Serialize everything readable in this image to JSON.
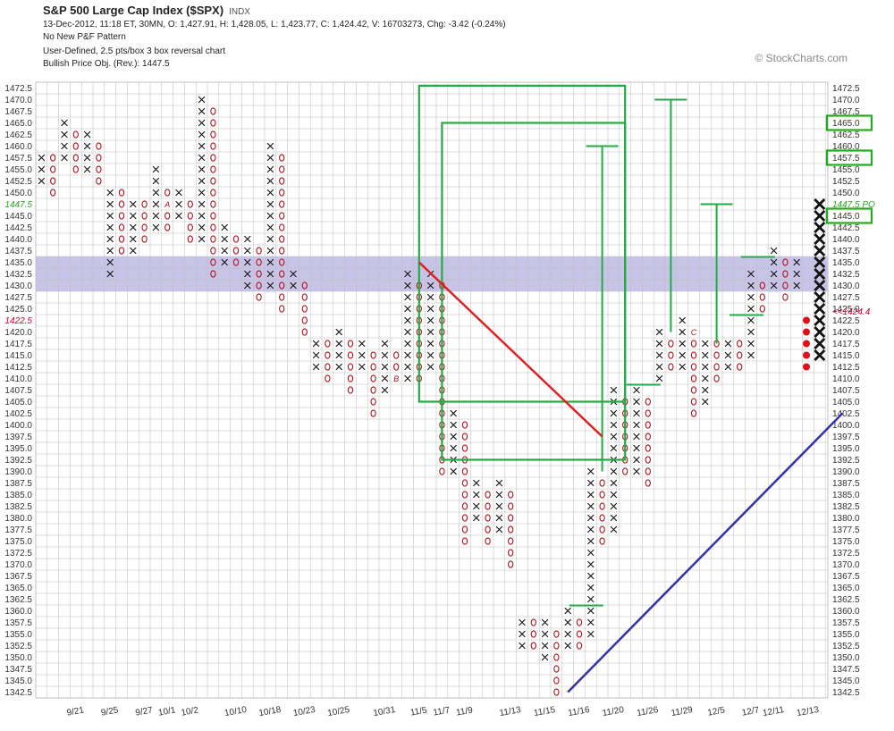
{
  "header": {
    "title": "S&P 500 Large Cap Index ($SPX)",
    "symbol_type": "INDX",
    "line1": "13-Dec-2012, 11:18 ET, 30MN, O: 1,427.91, H: 1,428.05, L: 1,423.77, C: 1,424.42, V: 16703273, Chg: -3.42 (-0.24%)",
    "line2": "No New P&F Pattern",
    "line3": "User-Defined, 2.5 pts/box 3 box reversal chart",
    "line4": "Bullish Price Obj. (Rev.): 1447.5",
    "watermark": "© StockCharts.com"
  },
  "chart_data": {
    "type": "point-and-figure",
    "box_size": 2.5,
    "reversal": 3,
    "y_range": [
      1342.5,
      1472.5
    ],
    "y_ticks": [
      "1472.5",
      "1470.0",
      "1467.5",
      "1465.0",
      "1462.5",
      "1460.0",
      "1457.5",
      "1455.0",
      "1452.5",
      "1450.0",
      "1447.5",
      "1445.0",
      "1442.5",
      "1440.0",
      "1437.5",
      "1435.0",
      "1432.5",
      "1430.0",
      "1427.5",
      "1425.0",
      "1422.5",
      "1420.0",
      "1417.5",
      "1415.0",
      "1412.5",
      "1410.0",
      "1407.5",
      "1405.0",
      "1402.5",
      "1400.0",
      "1397.5",
      "1395.0",
      "1392.5",
      "1390.0",
      "1387.5",
      "1385.0",
      "1382.5",
      "1380.0",
      "1377.5",
      "1375.0",
      "1372.5",
      "1370.0",
      "1367.5",
      "1365.0",
      "1362.5",
      "1360.0",
      "1357.5",
      "1355.0",
      "1352.5",
      "1350.0",
      "1347.5",
      "1345.0",
      "1342.5"
    ],
    "left_markers": [
      {
        "value": 1447.5,
        "label": "1447.5",
        "color": "#22aa22"
      },
      {
        "value": 1422.5,
        "label": "1422.5",
        "color": "#cc0033"
      }
    ],
    "right_markers": [
      {
        "value": 1465.0,
        "label": "1465.0",
        "boxed": true
      },
      {
        "value": 1457.5,
        "label": "1457.5",
        "boxed": true
      },
      {
        "value": 1447.5,
        "label": "1447.5 PO",
        "color": "#22aa22"
      },
      {
        "value": 1445.0,
        "label": "1445.0",
        "boxed": true
      },
      {
        "value": 1424.4,
        "label": "<<1424.4",
        "color": "#cc0033"
      }
    ],
    "x_labels": [
      {
        "col": 3,
        "label": "9/21"
      },
      {
        "col": 6,
        "label": "9/25"
      },
      {
        "col": 9,
        "label": "9/27"
      },
      {
        "col": 11,
        "label": "10/1"
      },
      {
        "col": 13,
        "label": "10/2"
      },
      {
        "col": 17,
        "label": "10/10"
      },
      {
        "col": 20,
        "label": "10/18"
      },
      {
        "col": 23,
        "label": "10/23"
      },
      {
        "col": 26,
        "label": "10/25"
      },
      {
        "col": 30,
        "label": "10/31"
      },
      {
        "col": 33,
        "label": "11/5"
      },
      {
        "col": 35,
        "label": "11/7"
      },
      {
        "col": 37,
        "label": "11/9"
      },
      {
        "col": 41,
        "label": "11/13"
      },
      {
        "col": 44,
        "label": "11/15"
      },
      {
        "col": 47,
        "label": "11/16"
      },
      {
        "col": 50,
        "label": "11/20"
      },
      {
        "col": 53,
        "label": "11/26"
      },
      {
        "col": 56,
        "label": "11/29"
      },
      {
        "col": 59,
        "label": "12/5"
      },
      {
        "col": 62,
        "label": "12/7"
      },
      {
        "col": 64,
        "label": "12/11"
      },
      {
        "col": 67,
        "label": "12/13"
      }
    ],
    "columns": [
      {
        "t": "X",
        "lo": 1452.5,
        "hi": 1457.5
      },
      {
        "t": "O",
        "lo": 1450.0,
        "hi": 1457.5
      },
      {
        "t": "X",
        "lo": 1457.5,
        "hi": 1465.0
      },
      {
        "t": "O",
        "lo": 1455.0,
        "hi": 1462.5
      },
      {
        "t": "X",
        "lo": 1455.0,
        "hi": 1462.5
      },
      {
        "t": "O",
        "lo": 1452.5,
        "hi": 1460.0
      },
      {
        "t": "X",
        "lo": 1432.5,
        "hi": 1450.0
      },
      {
        "t": "O",
        "lo": 1437.5,
        "hi": 1450.0
      },
      {
        "t": "X",
        "lo": 1437.5,
        "hi": 1447.5
      },
      {
        "t": "O",
        "lo": 1440.0,
        "hi": 1447.5
      },
      {
        "t": "X",
        "lo": 1442.5,
        "hi": 1455.0
      },
      {
        "t": "O",
        "lo": 1442.5,
        "hi": 1450.0
      },
      {
        "t": "X",
        "lo": 1445.0,
        "hi": 1450.0
      },
      {
        "t": "O",
        "lo": 1440.0,
        "hi": 1447.5
      },
      {
        "t": "X",
        "lo": 1440.0,
        "hi": 1470.0
      },
      {
        "t": "O",
        "lo": 1432.5,
        "hi": 1467.5
      },
      {
        "t": "X",
        "lo": 1435.0,
        "hi": 1442.5
      },
      {
        "t": "O",
        "lo": 1435.0,
        "hi": 1440.0
      },
      {
        "t": "X",
        "lo": 1430.0,
        "hi": 1440.0
      },
      {
        "t": "O",
        "lo": 1427.5,
        "hi": 1437.5
      },
      {
        "t": "X",
        "lo": 1430.0,
        "hi": 1460.0
      },
      {
        "t": "O",
        "lo": 1425.0,
        "hi": 1457.5
      },
      {
        "t": "X",
        "lo": 1430.0,
        "hi": 1432.5
      },
      {
        "t": "O",
        "lo": 1420.0,
        "hi": 1430.0
      },
      {
        "t": "X",
        "lo": 1412.5,
        "hi": 1417.5
      },
      {
        "t": "O",
        "lo": 1410.0,
        "hi": 1417.5
      },
      {
        "t": "X",
        "lo": 1412.5,
        "hi": 1420.0
      },
      {
        "t": "O",
        "lo": 1407.5,
        "hi": 1417.5
      },
      {
        "t": "X",
        "lo": 1412.5,
        "hi": 1417.5
      },
      {
        "t": "O",
        "lo": 1402.5,
        "hi": 1415.0
      },
      {
        "t": "X",
        "lo": 1407.5,
        "hi": 1417.5
      },
      {
        "t": "O",
        "lo": 1410.0,
        "hi": 1415.0
      },
      {
        "t": "X",
        "lo": 1410.0,
        "hi": 1432.5
      },
      {
        "t": "O",
        "lo": 1410.0,
        "hi": 1430.0
      },
      {
        "t": "X",
        "lo": 1412.5,
        "hi": 1432.5
      },
      {
        "t": "O",
        "lo": 1390.0,
        "hi": 1430.0
      },
      {
        "t": "X",
        "lo": 1390.0,
        "hi": 1402.5
      },
      {
        "t": "O",
        "lo": 1375.0,
        "hi": 1400.0
      },
      {
        "t": "X",
        "lo": 1380.0,
        "hi": 1387.5
      },
      {
        "t": "O",
        "lo": 1375.0,
        "hi": 1385.0
      },
      {
        "t": "X",
        "lo": 1377.5,
        "hi": 1387.5
      },
      {
        "t": "O",
        "lo": 1370.0,
        "hi": 1385.0
      },
      {
        "t": "X",
        "lo": 1352.5,
        "hi": 1357.5
      },
      {
        "t": "O",
        "lo": 1352.5,
        "hi": 1357.5
      },
      {
        "t": "X",
        "lo": 1350.0,
        "hi": 1357.5
      },
      {
        "t": "O",
        "lo": 1342.5,
        "hi": 1355.0
      },
      {
        "t": "X",
        "lo": 1352.5,
        "hi": 1360.0
      },
      {
        "t": "O",
        "lo": 1352.5,
        "hi": 1357.5
      },
      {
        "t": "X",
        "lo": 1355.0,
        "hi": 1390.0
      },
      {
        "t": "O",
        "lo": 1375.0,
        "hi": 1387.5
      },
      {
        "t": "X",
        "lo": 1377.5,
        "hi": 1407.5
      },
      {
        "t": "O",
        "lo": 1390.0,
        "hi": 1405.0
      },
      {
        "t": "X",
        "lo": 1390.0,
        "hi": 1407.5
      },
      {
        "t": "O",
        "lo": 1387.5,
        "hi": 1405.0
      },
      {
        "t": "X",
        "lo": 1410.0,
        "hi": 1420.0
      },
      {
        "t": "O",
        "lo": 1412.5,
        "hi": 1417.5
      },
      {
        "t": "X",
        "lo": 1412.5,
        "hi": 1422.5
      },
      {
        "t": "O",
        "lo": 1402.5,
        "hi": 1420.0
      },
      {
        "t": "X",
        "lo": 1405.0,
        "hi": 1417.5
      },
      {
        "t": "O",
        "lo": 1410.0,
        "hi": 1417.5
      },
      {
        "t": "X",
        "lo": 1412.5,
        "hi": 1417.5
      },
      {
        "t": "O",
        "lo": 1412.5,
        "hi": 1417.5
      },
      {
        "t": "X",
        "lo": 1415.0,
        "hi": 1432.5
      },
      {
        "t": "O",
        "lo": 1425.0,
        "hi": 1430.0
      },
      {
        "t": "X",
        "lo": 1430.0,
        "hi": 1437.5
      },
      {
        "t": "O",
        "lo": 1427.5,
        "hi": 1435.0
      },
      {
        "t": "X",
        "lo": 1430.0,
        "hi": 1435.0
      },
      {
        "t": "O",
        "lo": 1412.5,
        "hi": 1422.5
      },
      {
        "t": "X",
        "lo": 1415.0,
        "hi": 1447.5
      }
    ],
    "month_markers": [
      {
        "col": 11,
        "value": 1447.5,
        "label": "A"
      },
      {
        "col": 31,
        "value": 1410.0,
        "label": "B"
      },
      {
        "col": 57,
        "value": 1420.0,
        "label": "C"
      }
    ],
    "shaded_band": {
      "lo": 1430.0,
      "hi": 1435.0
    },
    "trendlines": [
      {
        "color": "#dd2222",
        "from": {
          "col": 33,
          "value": 1435.0
        },
        "to": {
          "col": 49,
          "value": 1397.5
        }
      },
      {
        "color": "#3333aa",
        "from": {
          "col": 46,
          "value": 1342.5
        },
        "to": {
          "col": 70,
          "value": 1402.5
        }
      }
    ],
    "target_boxes": [
      {
        "col_lo": 33,
        "col_hi": 51,
        "lo": 1405.0,
        "hi": 1473.0
      },
      {
        "col_lo": 35,
        "col_hi": 51,
        "lo": 1392.5,
        "hi": 1465.0
      }
    ],
    "vertical_targets": [
      {
        "col": 49,
        "lo": 1390.0,
        "hi": 1460.0
      },
      {
        "col": 55,
        "lo": 1420.0,
        "hi": 1470.0
      },
      {
        "col": 59,
        "lo": 1417.5,
        "hi": 1447.5
      },
      {
        "col": 48,
        "lo": 1360.0,
        "hi": 1360.0
      },
      {
        "col": 53,
        "lo": 1407.5,
        "hi": 1407.5
      },
      {
        "col": 62,
        "lo": 1422.5,
        "hi": 1422.5
      },
      {
        "col": 63,
        "lo": 1435.0,
        "hi": 1435.0
      }
    ]
  }
}
